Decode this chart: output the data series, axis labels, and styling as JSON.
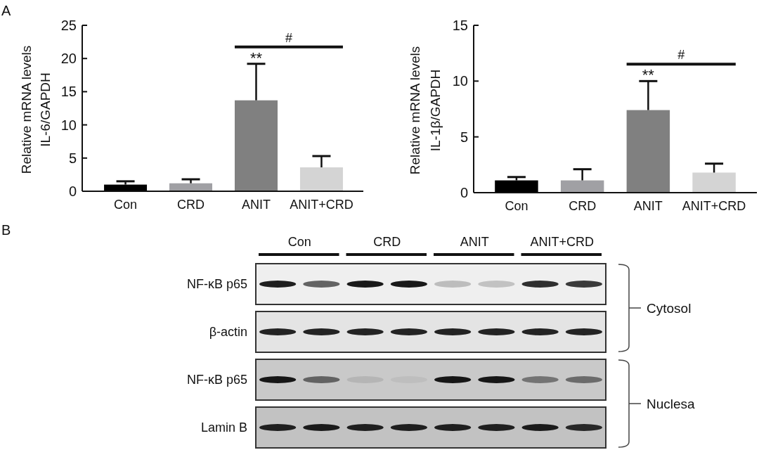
{
  "chart_data": [
    {
      "type": "bar",
      "title": "A",
      "categories": [
        "Con",
        "CRD",
        "ANIT",
        "ANIT+CRD"
      ],
      "values": [
        1.0,
        1.2,
        13.7,
        3.6
      ],
      "colors": [
        "#000000",
        "#a0a0a4",
        "#808080",
        "#d4d4d4"
      ],
      "errors": [
        0.5,
        0.6,
        5.5,
        1.7
      ],
      "ylabel": "Relative mRNA levels\nIL-6/GAPDH",
      "ylim": [
        0,
        25
      ],
      "yticks": [
        0,
        5,
        10,
        15,
        20,
        25
      ],
      "annotations": [
        {
          "text": "**",
          "x": "ANIT",
          "y": 19.2
        },
        "#"
      ]
    },
    {
      "type": "bar",
      "categories": [
        "Con",
        "CRD",
        "ANIT",
        "ANIT+CRD"
      ],
      "values": [
        1.1,
        1.1,
        7.4,
        1.8
      ],
      "colors": [
        "#000000",
        "#a0a0a4",
        "#808080",
        "#d4d4d4"
      ],
      "errors": [
        0.3,
        1.0,
        2.6,
        0.8
      ],
      "ylabel": "Relative mRNA levels\nIL-1β/GAPDH",
      "ylim": [
        0,
        15
      ],
      "yticks": [
        0,
        5,
        10,
        15
      ],
      "annotations": [
        {
          "text": "**",
          "x": "ANIT",
          "y": 10.0
        },
        "#"
      ]
    },
    {
      "type": "other",
      "title": "B",
      "categories": [
        "Con",
        "CRD",
        "ANIT",
        "ANIT+CRD"
      ],
      "y_categories": [
        "NF-κB p65",
        "β-actin",
        "NF-κB p65",
        "Lamin B"
      ],
      "annotations": [
        "Cytosol",
        "Nuclesa"
      ]
    }
  ]
}
